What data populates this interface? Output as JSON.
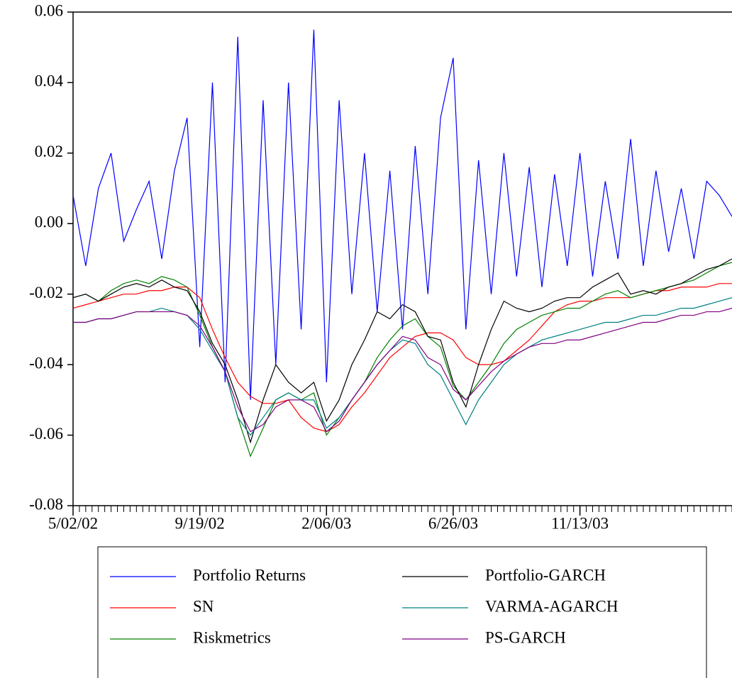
{
  "chart_data": {
    "type": "line",
    "categories": [
      "5/02/02",
      null,
      null,
      null,
      null,
      null,
      null,
      null,
      null,
      null,
      "9/19/02",
      null,
      null,
      null,
      null,
      null,
      null,
      null,
      null,
      null,
      "2/06/03",
      null,
      null,
      null,
      null,
      null,
      null,
      null,
      null,
      null,
      "6/26/03",
      null,
      null,
      null,
      null,
      null,
      null,
      null,
      null,
      null,
      "11/13/03",
      null,
      null,
      null,
      null,
      null,
      null,
      null,
      null,
      null,
      null,
      null,
      null
    ],
    "ylim": [
      -0.08,
      0.06
    ],
    "yticks": [
      -0.08,
      -0.06,
      -0.04,
      -0.02,
      {
        "value": 0,
        "label": "0.00"
      },
      0.02,
      0.04,
      0.06
    ],
    "legend": "bottom",
    "series": [
      {
        "name": "Portfolio Returns",
        "color": "#0000ff",
        "values": [
          0.008,
          -0.012,
          0.01,
          0.02,
          -0.005,
          0.004,
          0.012,
          -0.01,
          0.015,
          0.03,
          -0.035,
          0.04,
          -0.045,
          0.053,
          -0.05,
          0.035,
          -0.04,
          0.04,
          -0.03,
          0.055,
          -0.045,
          0.035,
          -0.02,
          0.02,
          -0.025,
          0.015,
          -0.03,
          0.022,
          -0.02,
          0.03,
          0.047,
          -0.03,
          0.018,
          -0.02,
          0.02,
          -0.015,
          0.016,
          -0.018,
          0.014,
          -0.012,
          0.02,
          -0.015,
          0.012,
          -0.01,
          0.024,
          -0.012,
          0.015,
          -0.008,
          0.01,
          -0.01,
          0.012,
          0.008,
          0.002
        ]
      },
      {
        "name": "SN",
        "color": "#ff0000",
        "values": [
          -0.024,
          -0.023,
          -0.022,
          -0.021,
          -0.02,
          -0.02,
          -0.019,
          -0.019,
          -0.018,
          -0.018,
          -0.021,
          -0.03,
          -0.038,
          -0.045,
          -0.049,
          -0.051,
          -0.051,
          -0.05,
          -0.055,
          -0.058,
          -0.059,
          -0.057,
          -0.052,
          -0.048,
          -0.043,
          -0.038,
          -0.035,
          -0.032,
          -0.031,
          -0.031,
          -0.033,
          -0.038,
          -0.04,
          -0.04,
          -0.039,
          -0.036,
          -0.033,
          -0.029,
          -0.025,
          -0.023,
          -0.022,
          -0.022,
          -0.021,
          -0.021,
          -0.021,
          -0.02,
          -0.019,
          -0.019,
          -0.018,
          -0.018,
          -0.018,
          -0.017,
          -0.017
        ]
      },
      {
        "name": "Riskmetrics",
        "color": "#008000",
        "values": [
          -0.021,
          -0.02,
          -0.022,
          -0.019,
          -0.017,
          -0.016,
          -0.017,
          -0.015,
          -0.016,
          -0.018,
          -0.026,
          -0.035,
          -0.042,
          -0.055,
          -0.066,
          -0.058,
          -0.05,
          -0.048,
          -0.05,
          -0.048,
          -0.06,
          -0.055,
          -0.05,
          -0.045,
          -0.038,
          -0.033,
          -0.029,
          -0.027,
          -0.032,
          -0.035,
          -0.046,
          -0.05,
          -0.045,
          -0.04,
          -0.034,
          -0.03,
          -0.028,
          -0.026,
          -0.025,
          -0.024,
          -0.024,
          -0.022,
          -0.02,
          -0.019,
          -0.021,
          -0.02,
          -0.019,
          -0.018,
          -0.017,
          -0.016,
          -0.014,
          -0.012,
          -0.011
        ]
      },
      {
        "name": "Portfolio-GARCH",
        "color": "#000000",
        "values": [
          -0.021,
          -0.02,
          -0.022,
          -0.02,
          -0.018,
          -0.017,
          -0.018,
          -0.016,
          -0.018,
          -0.019,
          -0.025,
          -0.034,
          -0.04,
          -0.05,
          -0.062,
          -0.05,
          -0.04,
          -0.045,
          -0.048,
          -0.045,
          -0.056,
          -0.05,
          -0.04,
          -0.033,
          -0.025,
          -0.027,
          -0.023,
          -0.025,
          -0.032,
          -0.033,
          -0.045,
          -0.052,
          -0.04,
          -0.03,
          -0.022,
          -0.024,
          -0.025,
          -0.024,
          -0.022,
          -0.021,
          -0.021,
          -0.018,
          -0.016,
          -0.014,
          -0.02,
          -0.019,
          -0.02,
          -0.018,
          -0.017,
          -0.015,
          -0.013,
          -0.012,
          -0.01
        ]
      },
      {
        "name": "VARMA-AGARCH",
        "color": "#008080",
        "values": [
          -0.028,
          -0.028,
          -0.027,
          -0.027,
          -0.026,
          -0.025,
          -0.025,
          -0.024,
          -0.025,
          -0.026,
          -0.03,
          -0.036,
          -0.042,
          -0.055,
          -0.06,
          -0.055,
          -0.05,
          -0.048,
          -0.05,
          -0.05,
          -0.058,
          -0.055,
          -0.05,
          -0.045,
          -0.04,
          -0.036,
          -0.033,
          -0.034,
          -0.04,
          -0.043,
          -0.05,
          -0.057,
          -0.05,
          -0.045,
          -0.04,
          -0.037,
          -0.035,
          -0.033,
          -0.032,
          -0.031,
          -0.03,
          -0.029,
          -0.028,
          -0.028,
          -0.027,
          -0.026,
          -0.026,
          -0.025,
          -0.024,
          -0.024,
          -0.023,
          -0.022,
          -0.021
        ]
      },
      {
        "name": "PS-GARCH",
        "color": "#800080",
        "values": [
          -0.028,
          -0.028,
          -0.027,
          -0.027,
          -0.026,
          -0.025,
          -0.025,
          -0.025,
          -0.025,
          -0.026,
          -0.029,
          -0.035,
          -0.042,
          -0.052,
          -0.059,
          -0.057,
          -0.052,
          -0.05,
          -0.05,
          -0.052,
          -0.059,
          -0.056,
          -0.05,
          -0.045,
          -0.04,
          -0.036,
          -0.032,
          -0.033,
          -0.038,
          -0.04,
          -0.047,
          -0.05,
          -0.046,
          -0.042,
          -0.039,
          -0.037,
          -0.035,
          -0.034,
          -0.034,
          -0.033,
          -0.033,
          -0.032,
          -0.031,
          -0.03,
          -0.029,
          -0.028,
          -0.028,
          -0.027,
          -0.026,
          -0.026,
          -0.025,
          -0.025,
          -0.024
        ]
      }
    ]
  }
}
